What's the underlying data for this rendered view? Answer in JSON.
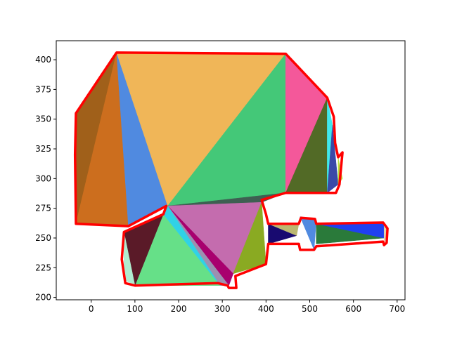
{
  "chart_data": {
    "type": "area",
    "title": "",
    "xlabel": "",
    "ylabel": "",
    "xlim": [
      -80,
      718
    ],
    "ylim": [
      198,
      416
    ],
    "x_ticks": [
      0,
      100,
      200,
      300,
      400,
      500,
      600,
      700
    ],
    "y_ticks": [
      200,
      225,
      250,
      275,
      300,
      325,
      350,
      375,
      400
    ],
    "grid": false,
    "outline_color": "#ff0000",
    "triangles": [
      {
        "name": "tri-1",
        "color": "#a0601a",
        "points": [
          [
            58,
            406
          ],
          [
            -35,
            262
          ],
          [
            -35,
            355
          ]
        ]
      },
      {
        "name": "tri-2",
        "color": "#cc6e1e",
        "points": [
          [
            58,
            406
          ],
          [
            -35,
            262
          ],
          [
            85,
            260
          ]
        ]
      },
      {
        "name": "tri-3",
        "color": "#508ae0",
        "points": [
          [
            58,
            406
          ],
          [
            85,
            260
          ],
          [
            175,
            277
          ]
        ]
      },
      {
        "name": "tri-4",
        "color": "#f0b658",
        "points": [
          [
            58,
            406
          ],
          [
            445,
            405
          ],
          [
            175,
            277
          ]
        ]
      },
      {
        "name": "tri-5",
        "color": "#44c878",
        "points": [
          [
            445,
            405
          ],
          [
            445,
            288
          ],
          [
            175,
            277
          ]
        ]
      },
      {
        "name": "tri-6",
        "color": "#3e5f52",
        "points": [
          [
            445,
            288
          ],
          [
            390,
            280
          ],
          [
            175,
            277
          ]
        ]
      },
      {
        "name": "tri-7",
        "color": "#f4589a",
        "points": [
          [
            445,
            405
          ],
          [
            540,
            368
          ],
          [
            445,
            288
          ]
        ]
      },
      {
        "name": "tri-8",
        "color": "#526a26",
        "points": [
          [
            540,
            368
          ],
          [
            540,
            288
          ],
          [
            445,
            288
          ]
        ]
      },
      {
        "name": "tri-9",
        "color": "#40e8ec",
        "points": [
          [
            540,
            368
          ],
          [
            552,
            345
          ],
          [
            540,
            288
          ]
        ]
      },
      {
        "name": "tri-10",
        "color": "#3a4aa8",
        "points": [
          [
            552,
            345
          ],
          [
            565,
            295
          ],
          [
            540,
            288
          ]
        ]
      },
      {
        "name": "tri-11",
        "color": "#b8e040",
        "points": [
          [
            565,
            318
          ],
          [
            575,
            300
          ],
          [
            565,
            295
          ]
        ]
      },
      {
        "name": "tri-12",
        "color": "#c46cae",
        "points": [
          [
            175,
            277
          ],
          [
            390,
            280
          ],
          [
            325,
            220
          ]
        ]
      },
      {
        "name": "tri-13",
        "color": "#8aaa22",
        "points": [
          [
            390,
            280
          ],
          [
            400,
            228
          ],
          [
            325,
            220
          ]
        ]
      },
      {
        "name": "tri-14",
        "color": "#a8006e",
        "points": [
          [
            175,
            277
          ],
          [
            325,
            220
          ],
          [
            315,
            210
          ]
        ]
      },
      {
        "name": "tri-15",
        "color": "#9c90b0",
        "points": [
          [
            175,
            277
          ],
          [
            315,
            210
          ],
          [
            295,
            210
          ]
        ]
      },
      {
        "name": "tri-16",
        "color": "#66e088",
        "points": [
          [
            165,
            270
          ],
          [
            295,
            210
          ],
          [
            100,
            210
          ]
        ]
      },
      {
        "name": "tri-17",
        "color": "#30d2e6",
        "points": [
          [
            175,
            277
          ],
          [
            165,
            270
          ],
          [
            295,
            210
          ]
        ]
      },
      {
        "name": "tri-18",
        "color": "#5a1a28",
        "points": [
          [
            165,
            270
          ],
          [
            75,
            255
          ],
          [
            100,
            210
          ]
        ]
      },
      {
        "name": "tri-19",
        "color": "#b0ecd0",
        "points": [
          [
            75,
            255
          ],
          [
            100,
            210
          ],
          [
            75,
            215
          ]
        ]
      },
      {
        "name": "tri-20",
        "color": "#180a70",
        "points": [
          [
            405,
            262
          ],
          [
            470,
            252
          ],
          [
            405,
            245
          ]
        ]
      },
      {
        "name": "tri-21",
        "color": "#bcb870",
        "points": [
          [
            405,
            262
          ],
          [
            475,
            262
          ],
          [
            470,
            252
          ]
        ]
      },
      {
        "name": "tri-22",
        "color": "#508ae0",
        "points": [
          [
            478,
            268
          ],
          [
            515,
            265
          ],
          [
            510,
            240
          ]
        ]
      },
      {
        "name": "tri-23",
        "color": "#2a7a3a",
        "points": [
          [
            515,
            262
          ],
          [
            670,
            250
          ],
          [
            515,
            245
          ]
        ]
      },
      {
        "name": "tri-24",
        "color": "#2040f0",
        "points": [
          [
            515,
            262
          ],
          [
            670,
            262
          ],
          [
            670,
            250
          ]
        ]
      },
      {
        "name": "tri-25",
        "color": "#dcd6b0",
        "points": [
          [
            670,
            262
          ],
          [
            678,
            255
          ],
          [
            670,
            245
          ]
        ]
      }
    ],
    "outline": [
      [
        58,
        406
      ],
      [
        445,
        405
      ],
      [
        540,
        368
      ],
      [
        555,
        352
      ],
      [
        558,
        330
      ],
      [
        565,
        318
      ],
      [
        575,
        322
      ],
      [
        568,
        295
      ],
      [
        560,
        288
      ],
      [
        445,
        288
      ],
      [
        390,
        282
      ],
      [
        400,
        270
      ],
      [
        405,
        262
      ],
      [
        475,
        262
      ],
      [
        480,
        267
      ],
      [
        512,
        266
      ],
      [
        515,
        262
      ],
      [
        668,
        263
      ],
      [
        678,
        258
      ],
      [
        676,
        246
      ],
      [
        670,
        244
      ],
      [
        668,
        247
      ],
      [
        515,
        243
      ],
      [
        510,
        240
      ],
      [
        478,
        240
      ],
      [
        475,
        245
      ],
      [
        405,
        245
      ],
      [
        400,
        228
      ],
      [
        330,
        218
      ],
      [
        332,
        208
      ],
      [
        315,
        208
      ],
      [
        312,
        210
      ],
      [
        290,
        212
      ],
      [
        100,
        210
      ],
      [
        78,
        212
      ],
      [
        70,
        232
      ],
      [
        75,
        255
      ],
      [
        165,
        270
      ],
      [
        172,
        277
      ],
      [
        85,
        260
      ],
      [
        -35,
        262
      ],
      [
        -37,
        320
      ],
      [
        -35,
        355
      ],
      [
        58,
        406
      ]
    ]
  }
}
